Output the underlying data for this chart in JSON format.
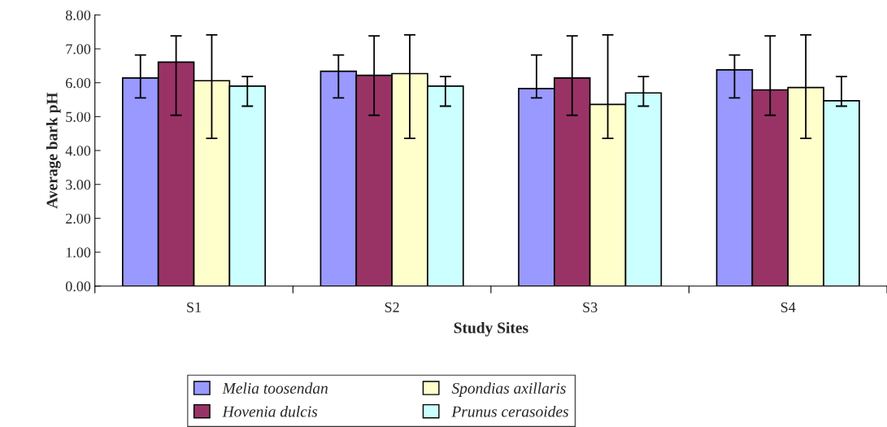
{
  "chart_data": {
    "type": "bar",
    "xlabel": "Study Sites",
    "ylabel": "Average bark pH",
    "categories": [
      "S1",
      "S2",
      "S3",
      "S4"
    ],
    "series": [
      {
        "name": "Melia toosendan",
        "color": "#9999ff",
        "values": [
          6.14,
          6.34,
          5.83,
          6.38
        ],
        "errors": [
          [
            5.55,
            6.82
          ],
          [
            5.55,
            6.82
          ],
          [
            5.55,
            6.82
          ],
          [
            5.55,
            6.82
          ]
        ]
      },
      {
        "name": "Hovenia dulcis",
        "color": "#993366",
        "values": [
          6.61,
          6.22,
          6.14,
          5.79
        ],
        "errors": [
          [
            5.04,
            7.38
          ],
          [
            5.04,
            7.38
          ],
          [
            5.04,
            7.38
          ],
          [
            5.04,
            7.38
          ]
        ]
      },
      {
        "name": "Spondias axillaris",
        "color": "#ffffcc",
        "values": [
          6.06,
          6.27,
          5.36,
          5.86
        ],
        "errors": [
          [
            4.36,
            7.41
          ],
          [
            4.36,
            7.41
          ],
          [
            4.36,
            7.41
          ],
          [
            4.36,
            7.41
          ]
        ]
      },
      {
        "name": "Prunus cerasoides",
        "color": "#ccffff",
        "values": [
          5.9,
          5.9,
          5.7,
          5.47
        ],
        "errors": [
          [
            5.31,
            6.18
          ],
          [
            5.31,
            6.18
          ],
          [
            5.31,
            6.18
          ],
          [
            5.31,
            6.18
          ]
        ]
      }
    ],
    "ylim": [
      0,
      8
    ],
    "yticks": [
      {
        "value": 0,
        "label": "0.00"
      },
      {
        "value": 1,
        "label": "1.00"
      },
      {
        "value": 2,
        "label": "2.00"
      },
      {
        "value": 3,
        "label": "3.00"
      },
      {
        "value": 4,
        "label": "4.00"
      },
      {
        "value": 5,
        "label": "5.00"
      },
      {
        "value": 6,
        "label": "6.00"
      },
      {
        "value": 7,
        "label": "7.00"
      },
      {
        "value": 8,
        "label": "8.00"
      }
    ],
    "grid": false,
    "legend": "bottom"
  }
}
